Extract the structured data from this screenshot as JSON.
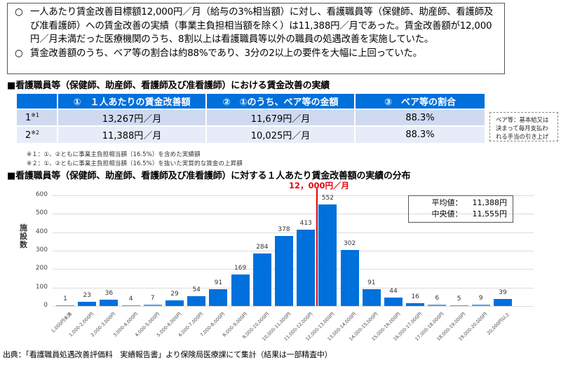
{
  "summary": {
    "lines": [
      {
        "bullet": "○",
        "text": "一人あたり賃金改善目標額12,000円／月（給与の3%相当額）に対し、看護職員等（保健師、助産師、看護師及び准看護師）への賃金改善の実績（事業主負担相当額を除く）は11,388円／月であった。賃金改善額が12,000円／月未満だった医療機関のうち、8割以上は看護職員等以外の職員の処遇改善を実施していた。"
      },
      {
        "bullet": "○",
        "text": "賃金改善額のうち、ベア等の割合は約88%であり、3分の2以上の要件を大幅に上回っていた。"
      }
    ]
  },
  "table_section": {
    "title": "■看護職員等（保健師、助産師、看護師及び准看護師）における賃金改善の実績",
    "headers": [
      "",
      "①　１人あたりの賃金改善額",
      "②　①のうち、ベア等の金額",
      "③　ベア等の割合"
    ],
    "rows": [
      {
        "label": "1",
        "note": "※1",
        "cells": [
          "13,267円／月",
          "11,679円／月",
          "88.3%"
        ]
      },
      {
        "label": "2",
        "note": "※2",
        "cells": [
          "11,388円／月",
          "10,025円／月",
          "88.3%"
        ]
      }
    ],
    "side_note": [
      "ベア等：基本給又は",
      "決まって毎月支払わ",
      "れる手当の引き上げ"
    ],
    "footnotes": [
      "※１：①、②ともに事業主負担相当額（16.5%）を含めた実績額",
      "※２：①、②ともに事業主負担相当額（16.5%）を抜いた実質的な賃金の上昇額"
    ]
  },
  "chart_section": {
    "title": "■看護職員等（保健師、助産師、看護師及び准看護師）に対する１人あたり賃金改善額の実績の分布",
    "target_label": "12，000円／月",
    "stats": [
      {
        "label": "平均値：",
        "value": "11,388円"
      },
      {
        "label": "中央値：",
        "value": "11,555円"
      }
    ]
  },
  "chart_data": {
    "type": "bar",
    "title": "看護職員等（保健師、助産師、看護師及び准看護師）に対する１人あたり賃金改善額の実績の分布",
    "xlabel": "",
    "ylabel": "施設数",
    "ylim": [
      0,
      600
    ],
    "yticks": [
      0,
      100,
      200,
      300,
      400,
      500,
      600
    ],
    "grid": true,
    "categories": [
      "1,000円未満",
      "1,000-2,000円",
      "2,000-3,000円",
      "3,000-4,000円",
      "4,000-5,000円",
      "5,000-6,000円",
      "6,000-7,000円",
      "7,000-8,000円",
      "8,000-9,000円",
      "9,000-10,000円",
      "10,000-11,000円",
      "11,000-12,000円",
      "12,000-13,000円",
      "13,000-14,000円",
      "14,000-15,000円",
      "15,000-16,000円",
      "16,000-17,000円",
      "17,000-18,000円",
      "18,000-19,000円",
      "19,000-20,000円",
      "20,000円以上"
    ],
    "values": [
      1,
      23,
      36,
      4,
      7,
      29,
      54,
      91,
      169,
      284,
      378,
      413,
      552,
      302,
      91,
      44,
      16,
      6,
      5,
      9,
      39
    ],
    "bar_color": "#0070dc",
    "annotations": [
      {
        "type": "vertical_line",
        "at": "12,000円",
        "label": "12，000円／月",
        "color": "#e8000b"
      },
      {
        "type": "textbox",
        "text": [
          "平均値：11,388円",
          "中央値：11,555円"
        ]
      }
    ]
  },
  "source": "出典：「看護職員処遇改善評価料　実績報告書」より保険局医療課にて集計（結果は一部精査中）"
}
